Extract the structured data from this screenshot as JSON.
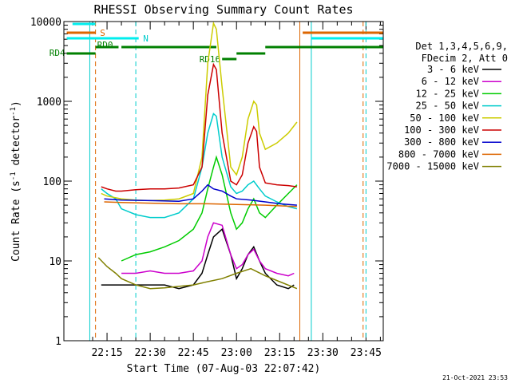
{
  "chart_data": {
    "type": "line",
    "title": "RHESSI Observing Summary Count Rates",
    "xlabel": "Start Time (07-Aug-03 22:07:42)",
    "ylabel_main": "Count Rate (s",
    "ylabel_sup1": "-1",
    "ylabel_mid": " detector",
    "ylabel_sup2": "-1",
    "ylabel_end": ")",
    "yscale": "log",
    "ylim": [
      1,
      10000
    ],
    "xlim_minutes": [
      22.0,
      111.0
    ],
    "x_ticks": [
      {
        "t": 22.25,
        "label": "22:15"
      },
      {
        "t": 22.5,
        "label": "22:30"
      },
      {
        "t": 22.75,
        "label": "22:45"
      },
      {
        "t": 23.0,
        "label": "23:00"
      },
      {
        "t": 23.25,
        "label": "23:15"
      },
      {
        "t": 23.5,
        "label": "23:30"
      },
      {
        "t": 23.75,
        "label": "23:45"
      }
    ],
    "y_ticks": [
      {
        "v": 1,
        "label": "1"
      },
      {
        "v": 10,
        "label": "10"
      },
      {
        "v": 100,
        "label": "100"
      },
      {
        "v": 1000,
        "label": "1000"
      },
      {
        "v": 10000,
        "label": "10000"
      }
    ],
    "legend_header": [
      "Det 1,3,4,5,6,9,",
      "FDecim 2, Att 0"
    ],
    "series": [
      {
        "name": "3 - 6 keV",
        "color": "#000000",
        "x": [
          "22:13",
          "22:20",
          "22:28",
          "22:35",
          "22:40",
          "22:45",
          "22:48",
          "22:50",
          "22:52",
          "22:55",
          "22:58",
          "23:00",
          "23:02",
          "23:04",
          "23:06",
          "23:08",
          "23:10",
          "23:14",
          "23:18",
          "23:20"
        ],
        "y": [
          5,
          5,
          5,
          5,
          4.5,
          5,
          7,
          12,
          20,
          25,
          12,
          6,
          8,
          12,
          15,
          10,
          7,
          5,
          4.5,
          5
        ]
      },
      {
        "name": "6 - 12 keV",
        "color": "#cc00cc",
        "x": [
          "22:20",
          "22:25",
          "22:30",
          "22:35",
          "22:40",
          "22:45",
          "22:48",
          "22:50",
          "22:52",
          "22:55",
          "22:58",
          "23:00",
          "23:02",
          "23:04",
          "23:06",
          "23:08",
          "23:10",
          "23:14",
          "23:18",
          "23:20"
        ],
        "y": [
          7,
          7,
          7.5,
          7,
          7,
          7.5,
          10,
          20,
          30,
          28,
          12,
          8,
          9,
          12,
          14,
          10,
          8,
          7,
          6.5,
          7
        ]
      },
      {
        "name": "12 - 25 keV",
        "color": "#00cc00",
        "x": [
          "22:20",
          "22:25",
          "22:30",
          "22:35",
          "22:40",
          "22:45",
          "22:48",
          "22:50",
          "22:52",
          "22:53",
          "22:55",
          "22:58",
          "23:00",
          "23:02",
          "23:04",
          "23:06",
          "23:08",
          "23:10",
          "23:14",
          "23:18",
          "23:21"
        ],
        "y": [
          10,
          12,
          13,
          15,
          18,
          25,
          40,
          80,
          150,
          200,
          120,
          40,
          25,
          30,
          45,
          60,
          40,
          35,
          50,
          70,
          90
        ]
      },
      {
        "name": "25 - 50 keV",
        "color": "#00cccc",
        "x": [
          "22:13",
          "22:15",
          "22:18",
          "22:20",
          "22:25",
          "22:30",
          "22:35",
          "22:40",
          "22:45",
          "22:48",
          "22:50",
          "22:52",
          "22:53",
          "22:55",
          "22:58",
          "23:00",
          "23:02",
          "23:04",
          "23:06",
          "23:08",
          "23:10",
          "23:14",
          "23:18",
          "23:21"
        ],
        "y": [
          80,
          70,
          60,
          45,
          38,
          35,
          35,
          40,
          60,
          150,
          400,
          700,
          650,
          200,
          85,
          70,
          75,
          90,
          100,
          80,
          65,
          55,
          48,
          45
        ]
      },
      {
        "name": "50 - 100 keV",
        "color": "#cccc00",
        "x": [
          "22:13",
          "22:15",
          "22:18",
          "22:20",
          "22:25",
          "22:30",
          "22:35",
          "22:40",
          "22:45",
          "22:48",
          "22:50",
          "22:52",
          "22:53",
          "22:55",
          "22:58",
          "23:00",
          "23:02",
          "23:04",
          "23:06",
          "23:07",
          "23:08",
          "23:10",
          "23:14",
          "23:18",
          "23:21"
        ],
        "y": [
          70,
          65,
          62,
          60,
          58,
          57,
          58,
          60,
          70,
          200,
          3000,
          9500,
          8000,
          1500,
          150,
          120,
          200,
          600,
          1000,
          900,
          400,
          250,
          300,
          400,
          550
        ]
      },
      {
        "name": "100 - 300 keV",
        "color": "#cc0000",
        "x": [
          "22:13",
          "22:15",
          "22:18",
          "22:20",
          "22:25",
          "22:30",
          "22:35",
          "22:40",
          "22:45",
          "22:48",
          "22:50",
          "22:52",
          "22:53",
          "22:55",
          "22:58",
          "23:00",
          "23:02",
          "23:04",
          "23:06",
          "23:07",
          "23:08",
          "23:10",
          "23:14",
          "23:18",
          "23:21"
        ],
        "y": [
          85,
          80,
          75,
          75,
          78,
          80,
          80,
          82,
          90,
          150,
          1200,
          2900,
          2500,
          400,
          100,
          90,
          120,
          300,
          480,
          420,
          150,
          95,
          90,
          88,
          85
        ]
      },
      {
        "name": "300 - 800 keV",
        "color": "#0000cc",
        "x": [
          "22:14",
          "22:20",
          "22:30",
          "22:40",
          "22:45",
          "22:48",
          "22:50",
          "22:52",
          "22:55",
          "22:58",
          "23:00",
          "23:05",
          "23:10",
          "23:15",
          "23:21"
        ],
        "y": [
          60,
          58,
          57,
          56,
          60,
          75,
          90,
          80,
          75,
          65,
          60,
          58,
          55,
          52,
          50
        ]
      },
      {
        "name": "800 - 7000 keV",
        "color": "#dd6600",
        "x": [
          "22:14",
          "22:20",
          "22:30",
          "22:40",
          "22:50",
          "23:00",
          "23:10",
          "23:21"
        ],
        "y": [
          55,
          54,
          53,
          52,
          52,
          51,
          50,
          48
        ]
      },
      {
        "name": "7000 - 15000 keV",
        "color": "#808000",
        "x": [
          "22:12",
          "22:15",
          "22:18",
          "22:20",
          "22:25",
          "22:30",
          "22:35",
          "22:40",
          "22:45",
          "22:50",
          "22:55",
          "23:00",
          "23:05",
          "23:10",
          "23:15",
          "23:21"
        ],
        "y": [
          11,
          8.5,
          7,
          6,
          5,
          4.5,
          4.6,
          4.8,
          5,
          5.5,
          6,
          7,
          8,
          6.5,
          5.5,
          4.5
        ]
      }
    ],
    "annotations": [
      "S",
      "N",
      "RD4",
      "RD0",
      "RD16"
    ],
    "vertical_markers": [
      {
        "t": "22:09",
        "color": "#00cccc",
        "style": "solid"
      },
      {
        "t": "22:11",
        "color": "#dd6600",
        "style": "dashed"
      },
      {
        "t": "22:25",
        "color": "#00cccc",
        "style": "dashed"
      },
      {
        "t": "23:22",
        "color": "#dd6600",
        "style": "solid"
      },
      {
        "t": "23:26",
        "color": "#00cccc",
        "style": "solid"
      },
      {
        "t": "23:44",
        "color": "#dd6600",
        "style": "dashed"
      },
      {
        "t": "23:45",
        "color": "#00cccc",
        "style": "dashed"
      }
    ],
    "footer_date": "21-Oct-2021 23:53"
  }
}
